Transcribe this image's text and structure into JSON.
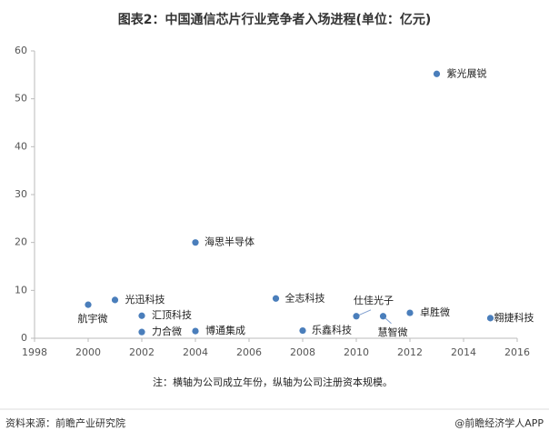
{
  "chart_data": {
    "type": "scatter",
    "title": "图表2：中国通信芯片行业竞争者入场进程(单位：亿元)",
    "x": [
      2000,
      2001,
      2002,
      2002,
      2004,
      2004,
      2007,
      2008,
      2010,
      2011,
      2012,
      2013,
      2015
    ],
    "values": [
      7,
      8,
      4.7,
      1.3,
      20,
      1.5,
      8.3,
      1.6,
      4.6,
      4.6,
      5.3,
      55.2,
      4.2
    ],
    "point_labels": [
      "航宇微",
      "光迅科技",
      "汇顶科技",
      "力合微",
      "海思半导体",
      "博通集成",
      "全志科技",
      "乐鑫科技",
      "仕佳光子",
      "慧智微",
      "卓胜微",
      "紫光展锐",
      "翱捷科技"
    ],
    "color": "#4a7ebb",
    "xlim": [
      1998,
      2016
    ],
    "xticks": [
      1998,
      2000,
      2002,
      2004,
      2006,
      2008,
      2010,
      2012,
      2014,
      2016
    ],
    "ylim": [
      0,
      60
    ],
    "yticks": [
      0,
      10,
      20,
      30,
      40,
      50,
      60
    ],
    "grid": false,
    "note": "注：横轴为公司成立年份，纵轴为公司注册资本规模。",
    "source": "资料来源：前瞻产业研究院",
    "credit": "@前瞻经济学人APP"
  }
}
